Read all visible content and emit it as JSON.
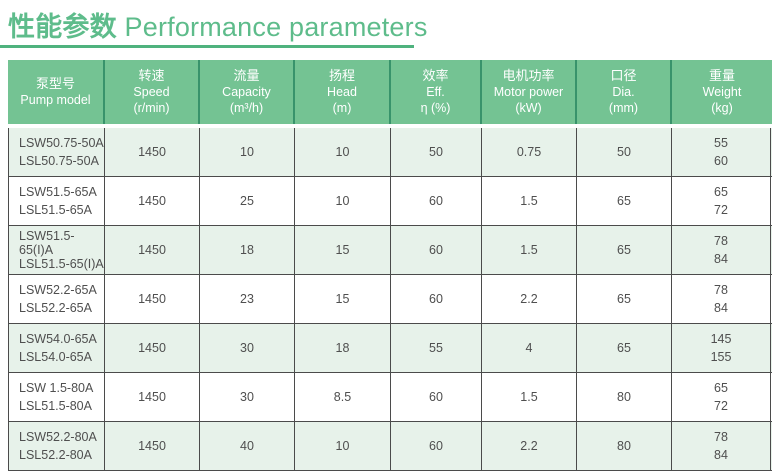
{
  "title": {
    "cn": "性能参数",
    "en": "Performance parameters"
  },
  "colors": {
    "title_green": "#5ebc8b",
    "underline_green": "#4fb27e",
    "header_bg": "#74c393",
    "header_divider": "#38936b",
    "header_text": "#ffffff",
    "row_alt_bg": "#e7f2ea",
    "row_bg": "#ffffff",
    "body_border": "#4b4b4b",
    "body_text": "#4f4f4f"
  },
  "table": {
    "headers": [
      {
        "cn": "泵型号",
        "en": "Pump model",
        "unit": ""
      },
      {
        "cn": "转速",
        "en": "Speed",
        "unit": "(r/min)"
      },
      {
        "cn": "流量",
        "en": "Capacity",
        "unit": "(m³/h)"
      },
      {
        "cn": "扬程",
        "en": "Head",
        "unit": "(m)"
      },
      {
        "cn": "效率",
        "en": "Eff.",
        "unit": "η (%)"
      },
      {
        "cn": "电机功率",
        "en": "Motor power",
        "unit": "(kW)"
      },
      {
        "cn": "口径",
        "en": "Dia.",
        "unit": "(mm)"
      },
      {
        "cn": "重量",
        "en": "Weight",
        "unit": "(kg)"
      }
    ],
    "rows": [
      {
        "models": [
          "LSW50.75-50A",
          "LSL50.75-50A"
        ],
        "speed": "1450",
        "capacity": "10",
        "head": "10",
        "eff": "50",
        "power": "0.75",
        "dia": "50",
        "weights": [
          "55",
          "60"
        ]
      },
      {
        "models": [
          "LSW51.5-65A",
          "LSL51.5-65A"
        ],
        "speed": "1450",
        "capacity": "25",
        "head": "10",
        "eff": "60",
        "power": "1.5",
        "dia": "65",
        "weights": [
          "65",
          "72"
        ]
      },
      {
        "models": [
          "LSW51.5-65(I)A",
          "LSL51.5-65(I)A"
        ],
        "speed": "1450",
        "capacity": "18",
        "head": "15",
        "eff": "60",
        "power": "1.5",
        "dia": "65",
        "weights": [
          "78",
          "84"
        ]
      },
      {
        "models": [
          "LSW52.2-65A",
          "LSL52.2-65A"
        ],
        "speed": "1450",
        "capacity": "23",
        "head": "15",
        "eff": "60",
        "power": "2.2",
        "dia": "65",
        "weights": [
          "78",
          "84"
        ]
      },
      {
        "models": [
          "LSW54.0-65A",
          "LSL54.0-65A"
        ],
        "speed": "1450",
        "capacity": "30",
        "head": "18",
        "eff": "55",
        "power": "4",
        "dia": "65",
        "weights": [
          "145",
          "155"
        ]
      },
      {
        "models": [
          "LSW 1.5-80A",
          "LSL51.5-80A"
        ],
        "speed": "1450",
        "capacity": "30",
        "head": "8.5",
        "eff": "60",
        "power": "1.5",
        "dia": "80",
        "weights": [
          "65",
          "72"
        ]
      },
      {
        "models": [
          "LSW52.2-80A",
          "LSL52.2-80A"
        ],
        "speed": "1450",
        "capacity": "40",
        "head": "10",
        "eff": "60",
        "power": "2.2",
        "dia": "80",
        "weights": [
          "78",
          "84"
        ]
      }
    ]
  }
}
